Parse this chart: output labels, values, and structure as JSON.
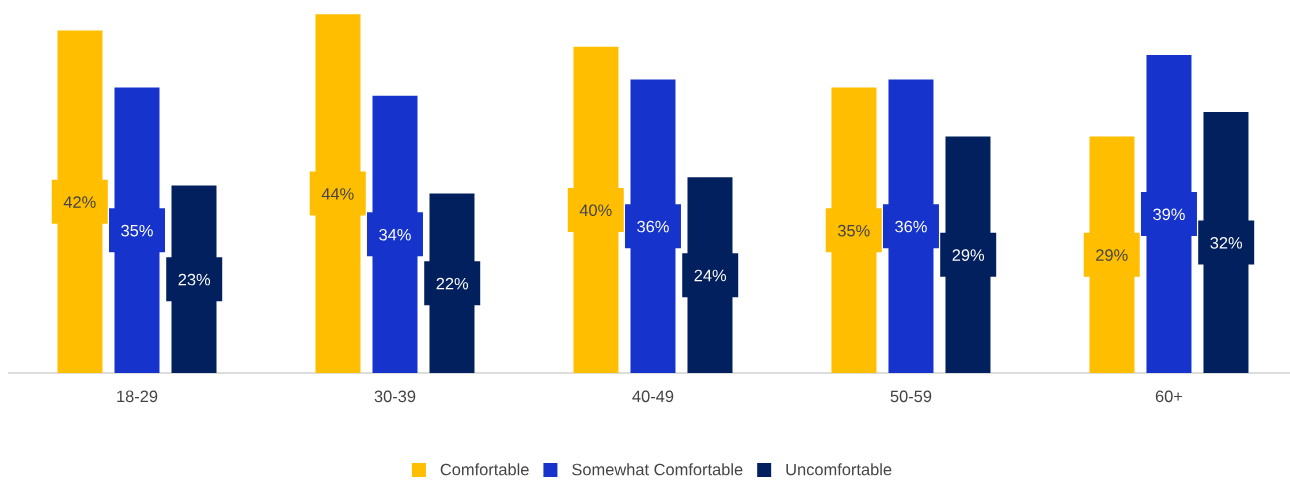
{
  "chart_data": {
    "type": "bar",
    "categories": [
      "18-29",
      "30-39",
      "40-49",
      "50-59",
      "60+"
    ],
    "series": [
      {
        "name": "Comfortable",
        "color": "#ffbe00",
        "values": [
          42,
          44,
          40,
          35,
          29
        ],
        "value_labels": [
          "42%",
          "44%",
          "40%",
          "35%",
          "29%"
        ]
      },
      {
        "name": "Somewhat Comfortable",
        "color": "#1634cc",
        "values": [
          35,
          34,
          36,
          36,
          39
        ],
        "value_labels": [
          "35%",
          "34%",
          "36%",
          "36%",
          "39%"
        ]
      },
      {
        "name": "Uncomfortable",
        "color": "#03205e",
        "values": [
          23,
          22,
          24,
          29,
          32
        ],
        "value_labels": [
          "23%",
          "22%",
          "24%",
          "29%",
          "32%"
        ]
      }
    ],
    "legend": "bottom"
  }
}
